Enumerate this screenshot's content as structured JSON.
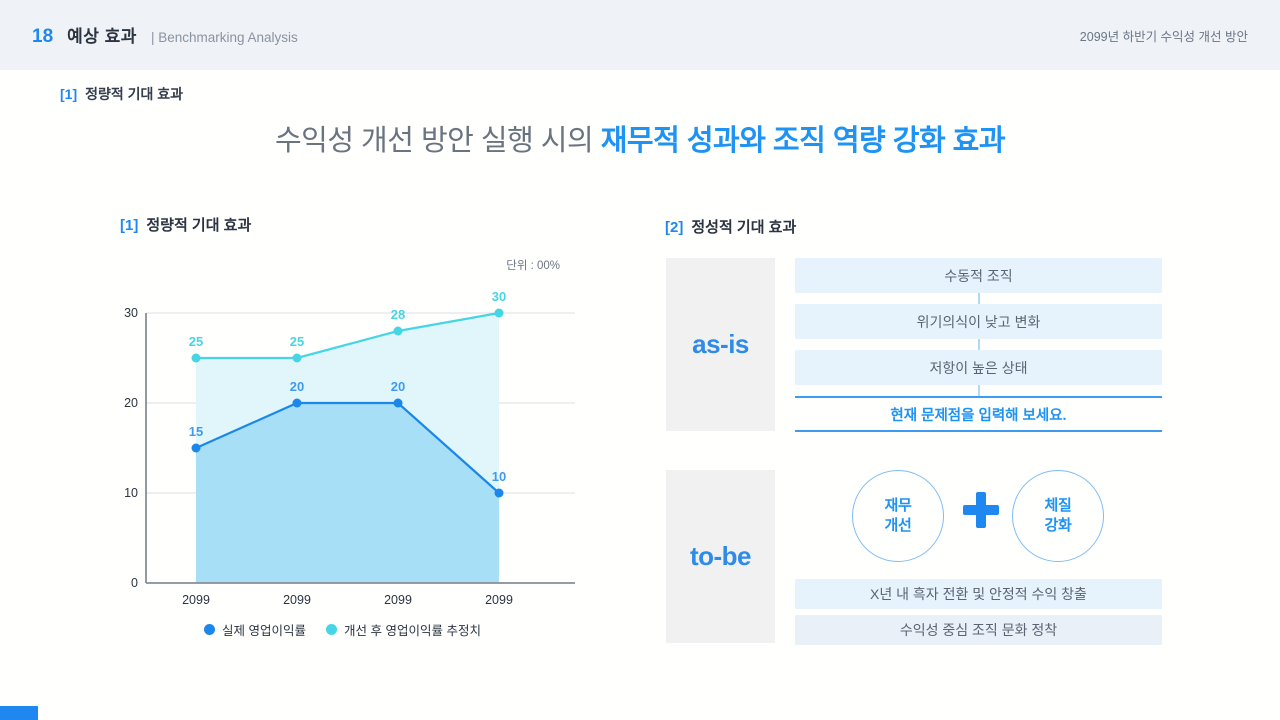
{
  "header": {
    "page_no": "18",
    "title": "예상 효과",
    "subtitle": "| Benchmarking Analysis",
    "right": "2099년 하반기 수익성 개선 방안"
  },
  "lead": {
    "index": "[1]",
    "label": "정량적 기대 효과"
  },
  "main_title": {
    "normal": "수익성 개선 방안 실행 시의 ",
    "accent": "재무적 성과와 조직 역량 강화 효과"
  },
  "quant": {
    "index": "[1]",
    "label": "정량적 기대 효과",
    "unit": "단위 : 00%"
  },
  "chart_data": {
    "type": "line",
    "categories": [
      "2099",
      "2099",
      "2099",
      "2099"
    ],
    "series": [
      {
        "name": "실제 영업이익률",
        "values": [
          15,
          20,
          20,
          10
        ],
        "color": "#1B87EA",
        "label_color": "#3E9BF0",
        "area_color": "#A7DFF7"
      },
      {
        "name": "개선 후 영업이익률 추정치",
        "values": [
          25,
          25,
          28,
          30
        ],
        "color": "#45D5E5",
        "label_color": "#45D5E5",
        "area_color": "#E1F6FB"
      }
    ],
    "title": "",
    "xlabel": "",
    "ylabel": "",
    "unit": "단위 : 00%",
    "ylim": [
      0,
      30
    ],
    "yticks": [
      0,
      10,
      20,
      30
    ],
    "grid": true,
    "legend_position": "bottom"
  },
  "qual": {
    "index": "[2]",
    "label": "정성적 기대 효과",
    "asis": {
      "label": "as-is",
      "rows": [
        "수동적 조직",
        "위기의식이 낮고 변화",
        "저항이 높은 상태"
      ],
      "highlight": "현재 문제점을 입력해 보세요."
    },
    "tobe": {
      "label": "to-be",
      "circles": [
        [
          "재무",
          "개선"
        ],
        [
          "체질",
          "강화"
        ]
      ],
      "plus": "+",
      "rows": [
        "X년 내 흑자 전환 및 안정적 수익 창출",
        "수익성 중심 조직 문화 정착"
      ]
    }
  },
  "colors": {
    "accent_blue": "#1E88F0",
    "title_accent": "#1E93F4",
    "header_bg": "#EFF2F6",
    "row_bg": "#E6F3FC",
    "row_bg_alt": "#E9F0F7",
    "stage_box_bg": "#F1F1F2",
    "gridline": "#DCDFE2",
    "axis": "#878E96"
  }
}
